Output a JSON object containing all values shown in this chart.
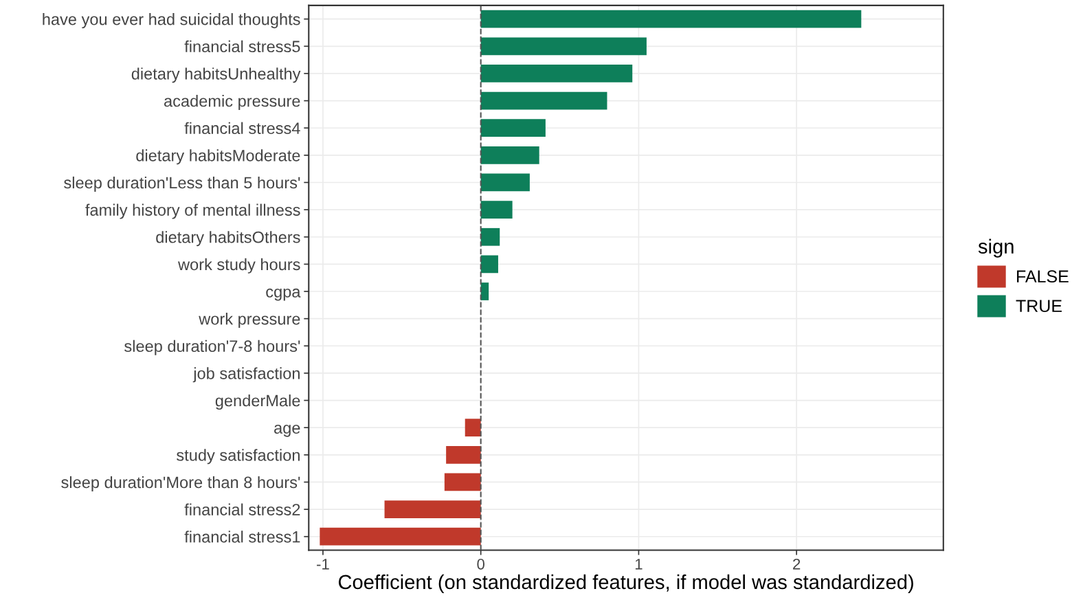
{
  "chart_data": {
    "type": "bar",
    "orientation": "horizontal",
    "xlabel": "Coefficient (on standardized features, if model was standardized)",
    "legend_title": "sign",
    "legend": "right",
    "grid": true,
    "categories": [
      "have you ever had suicidal thoughts",
      "financial stress5",
      "dietary habitsUnhealthy",
      "academic pressure",
      "financial stress4",
      "dietary habitsModerate",
      "sleep duration'Less than 5 hours'",
      "family history of mental illness",
      "dietary habitsOthers",
      "work study hours",
      "cgpa",
      "work pressure",
      "sleep duration'7-8 hours'",
      "job satisfaction",
      "genderMale",
      "age",
      "study satisfaction",
      "sleep duration'More than 8 hours'",
      "financial stress2",
      "financial stress1"
    ],
    "series": [
      {
        "name": "FALSE",
        "color": "#c0392b",
        "values": [
          null,
          null,
          null,
          null,
          null,
          null,
          null,
          null,
          null,
          null,
          null,
          0,
          0,
          0,
          0,
          -0.1,
          -0.22,
          -0.23,
          -0.61,
          -1.02
        ]
      },
      {
        "name": "TRUE",
        "color": "#0e7f5a",
        "values": [
          2.41,
          1.05,
          0.96,
          0.8,
          0.41,
          0.37,
          0.31,
          0.2,
          0.12,
          0.11,
          0.05,
          null,
          null,
          null,
          null,
          null,
          null,
          null,
          null,
          null
        ]
      }
    ],
    "xlim": [
      -1.09,
      2.93
    ],
    "xticks": [
      -1,
      0,
      1,
      2
    ],
    "ref_lines": [
      {
        "axis": "x",
        "value": 0,
        "color": "#555555",
        "line_style": "dashed"
      }
    ]
  }
}
